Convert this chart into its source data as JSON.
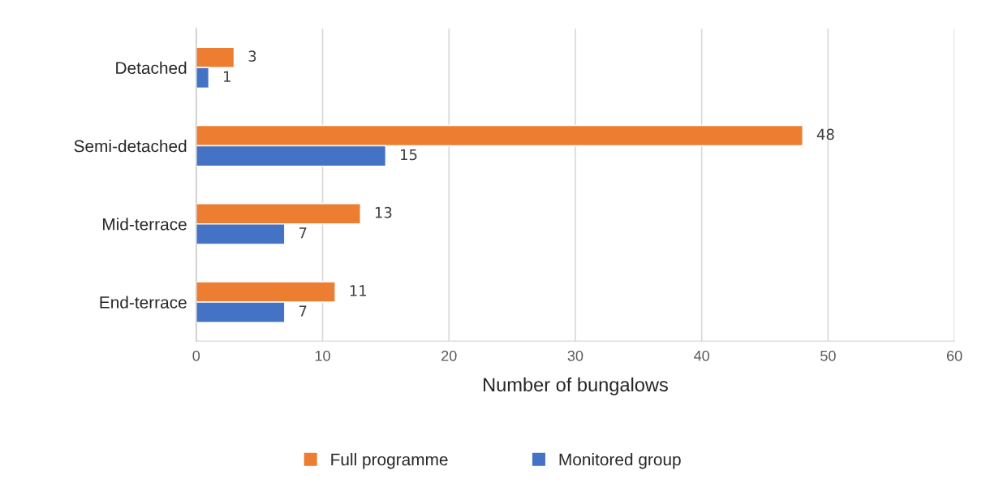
{
  "chart_data": {
    "type": "bar",
    "orientation": "horizontal",
    "categories": [
      "Detached",
      "Semi-detached",
      "Mid-terrace",
      "End-terrace"
    ],
    "series": [
      {
        "name": "Full programme",
        "color": "#ed7d31",
        "values": [
          3,
          48,
          13,
          11
        ]
      },
      {
        "name": "Monitored group",
        "color": "#4472c4",
        "values": [
          1,
          15,
          7,
          7
        ]
      }
    ],
    "xlabel": "Number of bungalows",
    "xlim": [
      0,
      60
    ],
    "xticks": [
      0,
      10,
      20,
      30,
      40,
      50,
      60
    ],
    "grid": "x",
    "legend": "bottom",
    "data_labels": true
  }
}
